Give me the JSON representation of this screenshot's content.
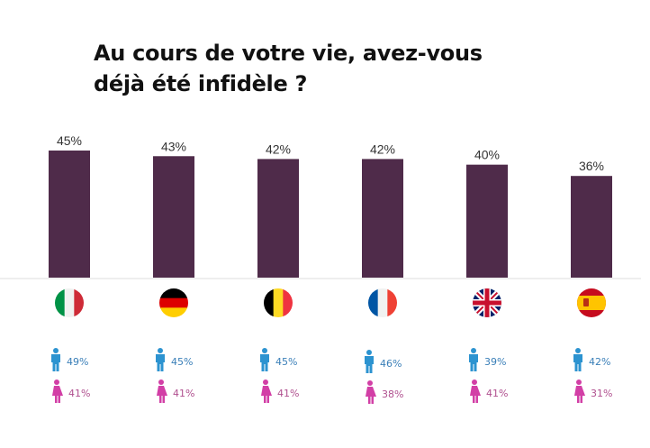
{
  "title": "Au cours de votre vie, avez-vous déjà été infidèle ?",
  "colors": {
    "bar": "#4f2b4a",
    "male": "#2c93d0",
    "female": "#d23fa6",
    "baseline": "#dddddd"
  },
  "chart_data": {
    "type": "bar",
    "title": "Au cours de votre vie, avez-vous déjà été infidèle ?",
    "xlabel": "",
    "ylabel": "",
    "categories": [
      "Italie",
      "Allemagne",
      "Belgique",
      "France",
      "Royaume-Uni",
      "Espagne"
    ],
    "values": [
      45,
      43,
      42,
      42,
      40,
      36
    ],
    "value_labels": [
      "45%",
      "43%",
      "42%",
      "42%",
      "40%",
      "36%"
    ],
    "ylim": [
      0,
      50
    ],
    "grid": false,
    "series_by_gender": [
      {
        "name": "Hommes",
        "icon": "male-icon",
        "values": [
          49,
          45,
          45,
          46,
          39,
          42
        ],
        "labels": [
          "49%",
          "45%",
          "45%",
          "46%",
          "39%",
          "42%"
        ]
      },
      {
        "name": "Femmes",
        "icon": "female-icon",
        "values": [
          41,
          41,
          41,
          38,
          41,
          31
        ],
        "labels": [
          "41%",
          "41%",
          "41%",
          "38%",
          "41%",
          "31%"
        ]
      }
    ],
    "flags": [
      "italy-flag-icon",
      "germany-flag-icon",
      "belgium-flag-icon",
      "france-flag-icon",
      "uk-flag-icon",
      "spain-flag-icon"
    ]
  }
}
